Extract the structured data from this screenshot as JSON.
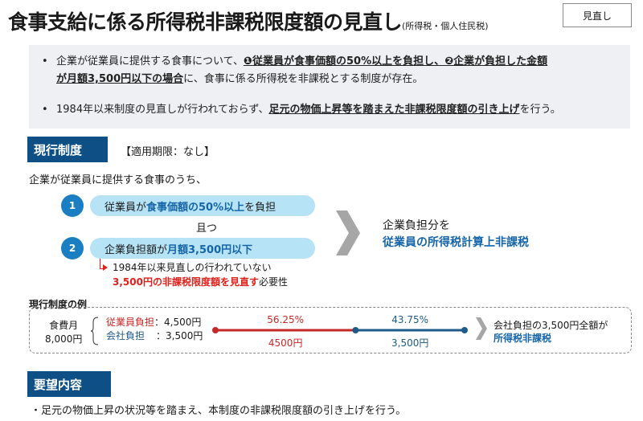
{
  "header": {
    "title": "食事支給に係る所得税非課税限度額の見直し",
    "title_sub": "(所得税・個人住民税)",
    "tag": "見直し"
  },
  "summary": {
    "bullet1_a": "企業が従業員に提供する食事について、",
    "bullet1_b": "❶従業員が食事価額の50%以上を負担し、❷企業が負担した金額",
    "bullet1_c": "が月額3,500円以下の場合",
    "bullet1_d": "に、食事に係る所得税を非課税とする制度が存在。",
    "bullet2_a": "1984年以来制度の見直しが行われておらず、",
    "bullet2_b": "足元の物価上昇等を踏まえた非課税限度額の引き上げ",
    "bullet2_c": "を行う。"
  },
  "current": {
    "heading": "現行制度",
    "period": "【適用期限：なし】",
    "intro": "企業が従業員に提供する食事のうち、",
    "cond1_num": "1",
    "cond1_a": "従業員が",
    "cond1_b": "食事価額の50%以上",
    "cond1_c": "を負担",
    "and": "且つ",
    "cond2_num": "2",
    "cond2_a": "企業負担額が",
    "cond2_b": "月額3,500円以下",
    "note1": "1984年以来見直しの行われていない",
    "note2_a": "3,500円の非課税限度額を見直す",
    "note2_b": "必要性",
    "result1": "企業負担分を",
    "result2": "従業員の所得税計算上非課税"
  },
  "example": {
    "heading": "現行制度の例",
    "meal_label": "食費月",
    "meal_total": "8,000円",
    "emp_label": "従業員負担",
    "emp_value": "：4,500円",
    "co_label": "会社負担",
    "co_value": "：3,500円",
    "bar1_pct": "56.25%",
    "bar1_amt": "4500円",
    "bar2_pct": "43.75%",
    "bar2_amt": "3,500円",
    "result1": "会社負担の3,500円全額が",
    "result2": "所得税非課税",
    "emp_share": 0.5625,
    "colors": {
      "employee": "#c62828",
      "company": "#1e5a8a"
    }
  },
  "request": {
    "heading": "要望内容",
    "bullet": "足元の物価上昇の状況等を踏まえ、本制度の非課税限度額の引き上げを行う。"
  }
}
